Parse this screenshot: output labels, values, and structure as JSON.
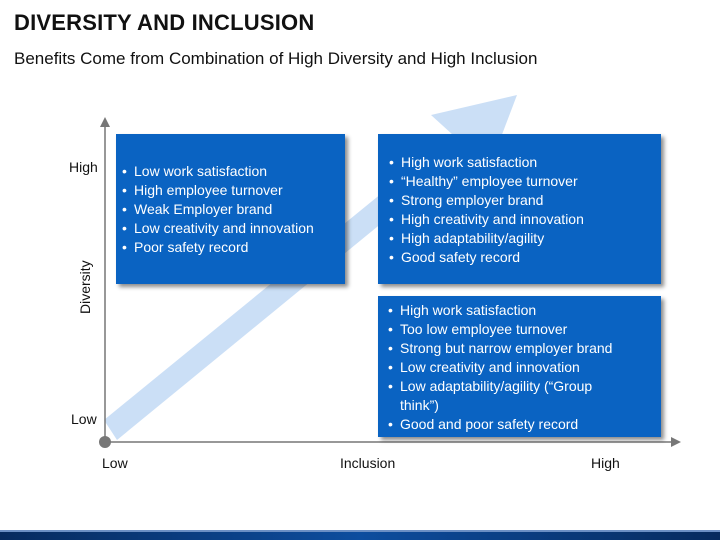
{
  "header": {
    "title": "DIVERSITY AND INCLUSION",
    "subtitle": "Benefits Come from Combination of High Diversity and High Inclusion"
  },
  "axes": {
    "y_title": "Diversity",
    "y_high": "High",
    "y_low": "Low",
    "x_low": "Low",
    "x_title": "Inclusion",
    "x_high": "High"
  },
  "quadrants": {
    "high_diversity_low_inclusion": [
      "Low work satisfaction",
      "High employee turnover",
      "Weak Employer brand",
      "Low creativity and innovation",
      "Poor safety record"
    ],
    "high_diversity_high_inclusion": [
      "High work satisfaction",
      "“Healthy” employee turnover",
      "Strong employer brand",
      "High creativity and innovation",
      "High adaptability/agility",
      "Good safety record"
    ],
    "low_diversity_high_inclusion": [
      "High work satisfaction",
      "Too low employee turnover",
      "Strong but narrow employer brand",
      "Low creativity and innovation",
      "Low adaptability/agility (“Group think”)",
      "Good and poor safety record"
    ]
  },
  "colors": {
    "box_fill": "#0a63c2",
    "arrow_fill": "#c5dcf5",
    "axis": "#777777"
  }
}
